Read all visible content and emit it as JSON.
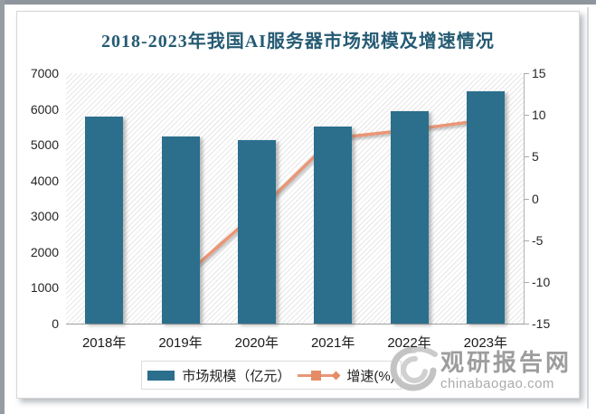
{
  "watermark": {
    "name": "观研报告网",
    "url": "chinabaogao.com"
  },
  "colors": {
    "bar": "#2b6f8d",
    "line": "#ea9676",
    "marker": "#e58c66",
    "marker_border": "#cf7a52",
    "title": "#255b73"
  },
  "chart_data": {
    "type": "bar+line combo",
    "title": "2018-2023年我国AI服务器市场规模及增速情况",
    "categories": [
      "2018年",
      "2019年",
      "2020年",
      "2021年",
      "2022年",
      "2023年"
    ],
    "series": [
      {
        "name": "市场规模（亿元）",
        "type": "bar",
        "axis": "left",
        "values": [
          5780,
          5220,
          5130,
          5500,
          5950,
          6500
        ]
      },
      {
        "name": "增速(%)",
        "type": "line",
        "axis": "right",
        "values": [
          null,
          -9.7,
          -1.7,
          7.2,
          8.2,
          9.4
        ]
      }
    ],
    "left_axis": {
      "ticks": [
        0,
        1000,
        2000,
        3000,
        4000,
        5000,
        6000,
        7000
      ],
      "range": [
        0,
        7000
      ]
    },
    "right_axis": {
      "ticks": [
        -15,
        -10,
        -5,
        0,
        5,
        10,
        15
      ],
      "range": [
        -15,
        15
      ]
    },
    "layout": {
      "legend_position": "bottom",
      "grid": false,
      "plot_background": "diagonal-hatch"
    }
  }
}
